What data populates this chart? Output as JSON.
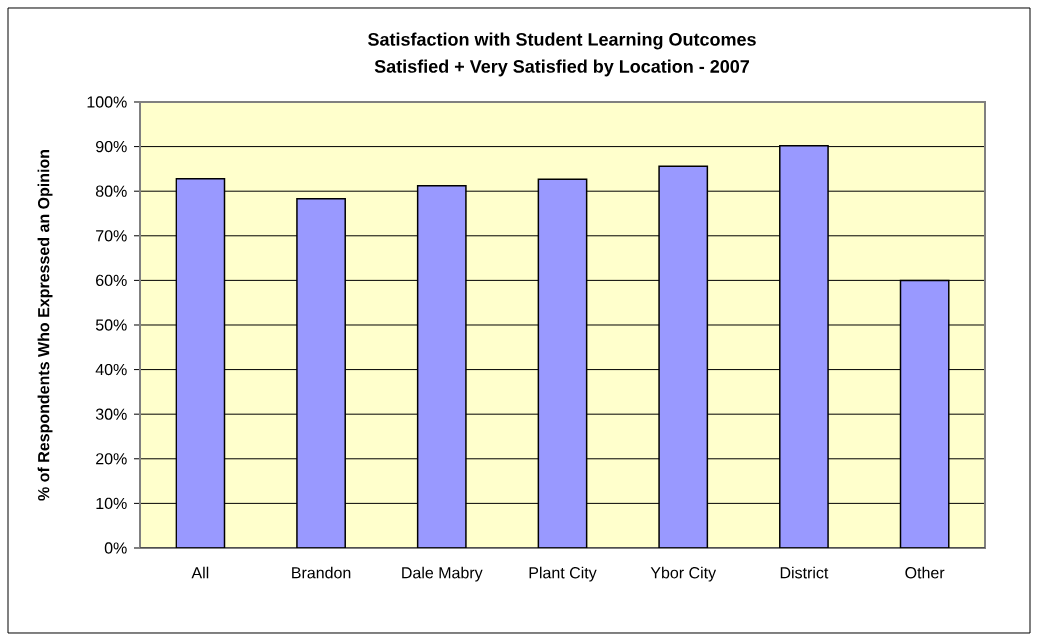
{
  "chart_data": {
    "type": "bar",
    "title": "Satisfaction with Student Learning Outcomes",
    "subtitle": "Satisfied + Very Satisfied by Location - 2007",
    "ylabel": "% of Respondents Who Expressed an Opinion",
    "categories": [
      "All",
      "Brandon",
      "Dale Mabry",
      "Plant City",
      "Ybor City",
      "District",
      "Other"
    ],
    "values": [
      82.8,
      78.3,
      81.2,
      82.7,
      85.6,
      90.2,
      60.0
    ],
    "color": "#9999ff",
    "ylim": [
      0,
      100
    ],
    "yticks": [
      {
        "value": 0,
        "label": "0%"
      },
      {
        "value": 10,
        "label": "10%"
      },
      {
        "value": 20,
        "label": "20%"
      },
      {
        "value": 30,
        "label": "30%"
      },
      {
        "value": 40,
        "label": "40%"
      },
      {
        "value": 50,
        "label": "50%"
      },
      {
        "value": 60,
        "label": "60%"
      },
      {
        "value": 70,
        "label": "70%"
      },
      {
        "value": 80,
        "label": "80%"
      },
      {
        "value": 90,
        "label": "90%"
      },
      {
        "value": 100,
        "label": "100%"
      }
    ],
    "grid": "y"
  }
}
